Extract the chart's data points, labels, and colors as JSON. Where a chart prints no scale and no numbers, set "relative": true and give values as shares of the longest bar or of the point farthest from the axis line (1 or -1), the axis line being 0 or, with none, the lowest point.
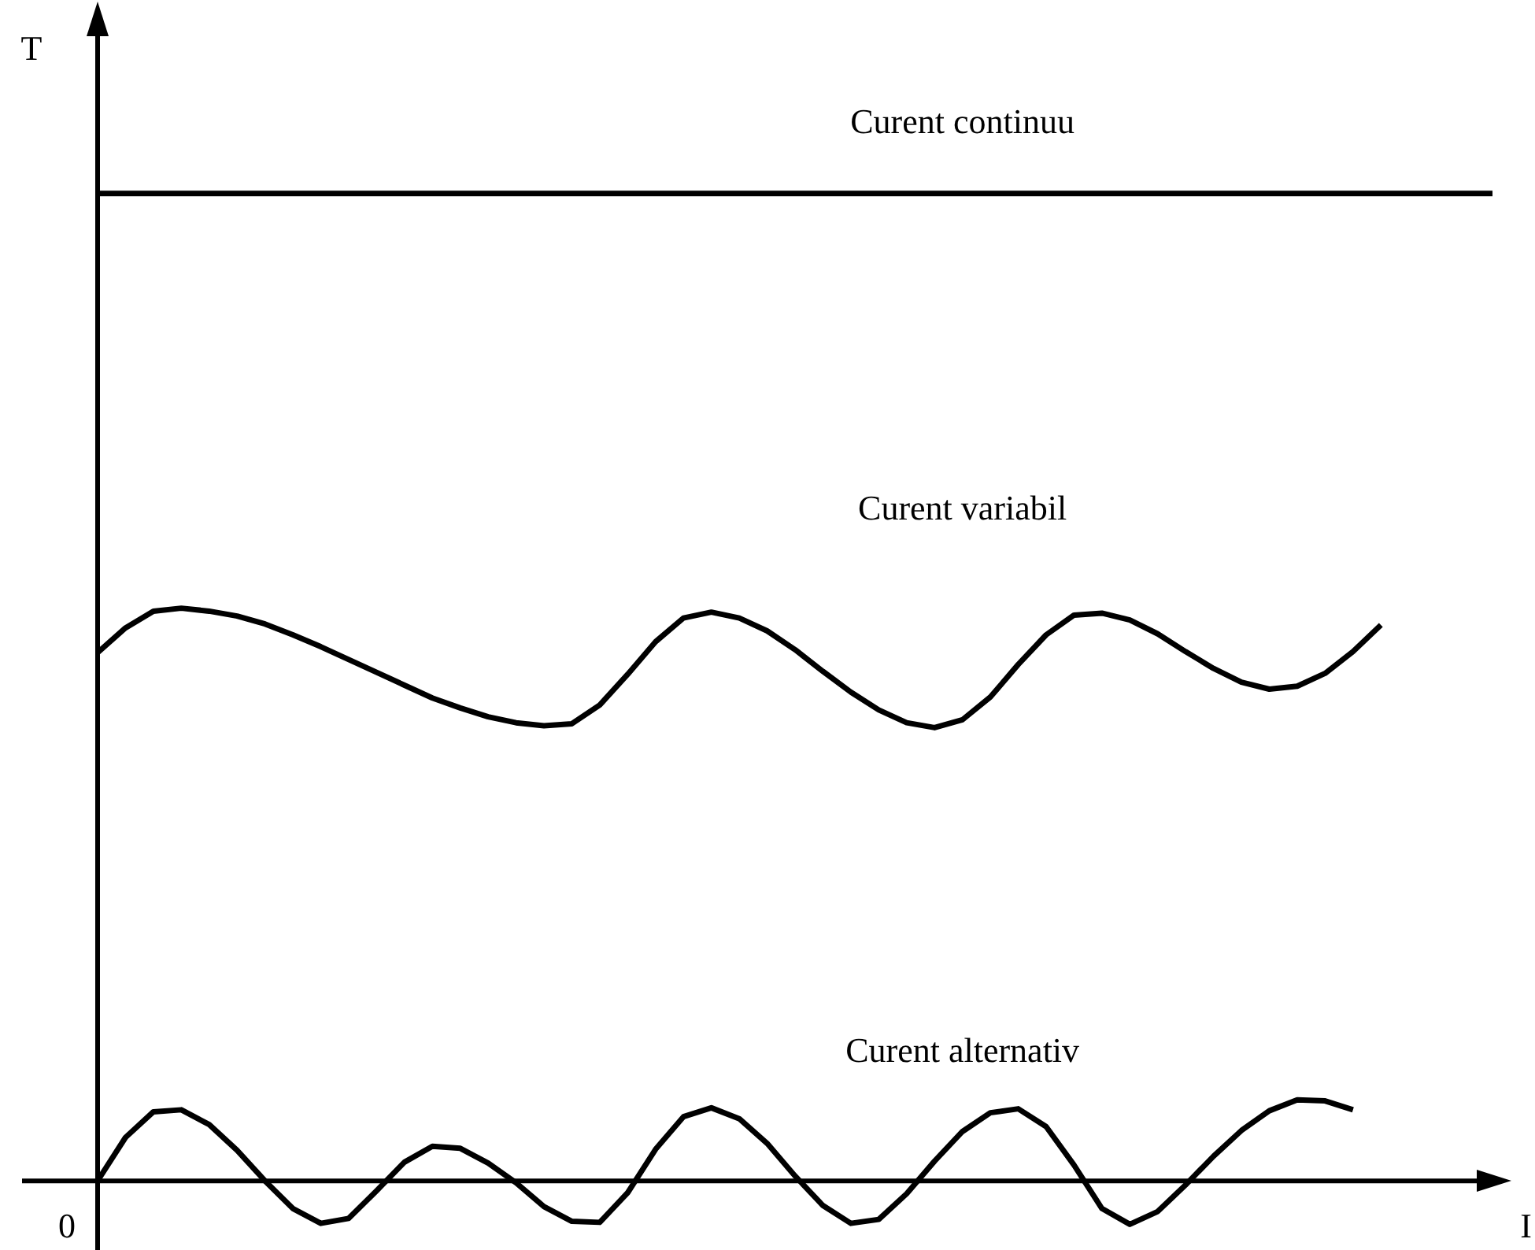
{
  "chart_data": {
    "type": "line",
    "relative": true,
    "ylabel": "T",
    "xlabel": "I",
    "annotations": [
      "0"
    ],
    "legend": false,
    "marker": "none",
    "line_style": "solid",
    "categories": [
      null,
      null,
      null,
      null,
      null,
      null,
      null,
      null,
      null,
      null,
      null,
      null,
      null,
      null,
      null,
      null,
      null,
      null,
      null,
      null,
      null,
      null,
      null,
      null,
      null,
      null,
      null,
      null,
      null,
      null,
      null,
      null,
      null,
      null,
      null,
      null,
      null,
      null,
      null,
      null,
      null,
      null,
      null,
      null,
      null,
      null,
      null,
      null,
      null,
      null,
      null
    ],
    "series": [
      {
        "name": "Curent continuu",
        "color": "#000000",
        "values": [
          1,
          1,
          1,
          1,
          1,
          1,
          1,
          1,
          1,
          1,
          1,
          1,
          1,
          1,
          1,
          1,
          1,
          1,
          1,
          1,
          1,
          1,
          1,
          1,
          1,
          1,
          1,
          1,
          1,
          1,
          1,
          1,
          1,
          1,
          1,
          1,
          1,
          1,
          1,
          1,
          1,
          1,
          1,
          1,
          1,
          1,
          1,
          1,
          1,
          1,
          1
        ]
      },
      {
        "name": "Curent variabil",
        "color": "#000000",
        "values": [
          0.535,
          0.56,
          0.577,
          0.58,
          0.577,
          0.572,
          0.564,
          0.553,
          0.541,
          0.528,
          0.515,
          0.502,
          0.489,
          0.479,
          0.47,
          0.464,
          0.461,
          0.463,
          0.482,
          0.513,
          0.546,
          0.57,
          0.576,
          0.57,
          0.557,
          0.538,
          0.516,
          0.495,
          0.477,
          0.464,
          0.459,
          0.467,
          0.49,
          0.523,
          0.553,
          0.573,
          0.575,
          0.568,
          0.554,
          0.536,
          0.519,
          0.505,
          0.498,
          0.501,
          0.514,
          0.536,
          0.563,
          null,
          null,
          null,
          null
        ]
      },
      {
        "name": "Curent alternativ",
        "color": "#000000",
        "values": [
          0,
          0.044,
          0.07,
          0.072,
          0.057,
          0.031,
          0,
          -0.028,
          -0.043,
          -0.038,
          -0.01,
          0.019,
          0.035,
          0.033,
          0.018,
          -0.002,
          -0.026,
          -0.041,
          -0.042,
          -0.012,
          0.032,
          0.065,
          0.074,
          0.063,
          0.038,
          0.005,
          -0.025,
          -0.043,
          -0.039,
          -0.013,
          0.02,
          0.05,
          0.069,
          0.073,
          0.055,
          0.016,
          -0.028,
          -0.044,
          -0.031,
          -0.004,
          0.025,
          0.051,
          0.071,
          0.082,
          0.081,
          0.072,
          null,
          null,
          null,
          null,
          null
        ]
      }
    ]
  }
}
